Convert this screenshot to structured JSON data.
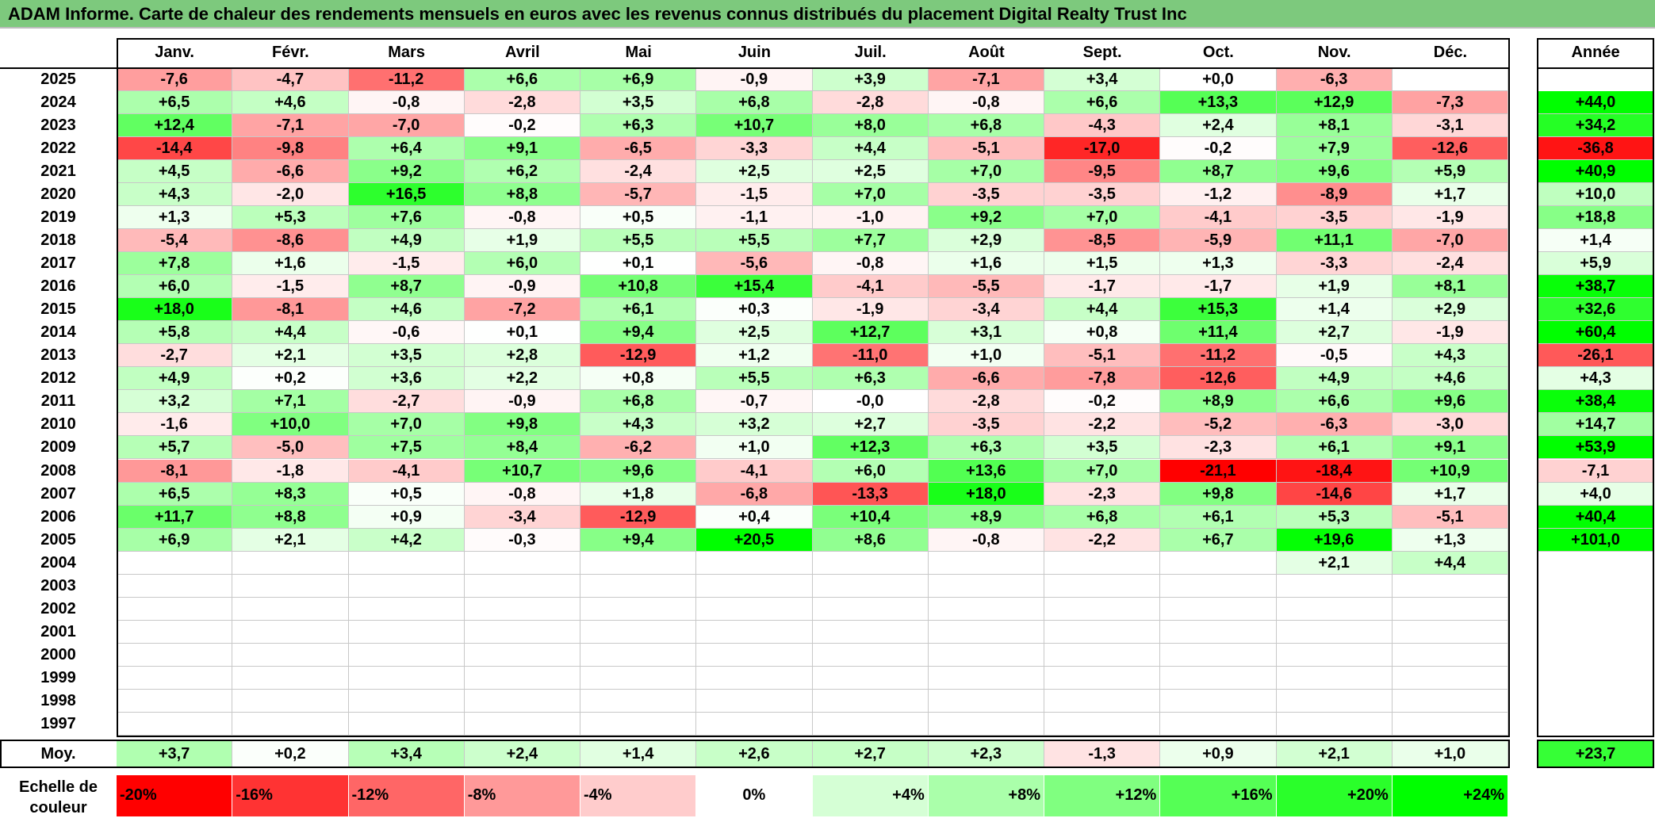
{
  "title": "ADAM Informe. Carte de chaleur des rendements mensuels en euros avec les revenus connus distribués du placement Digital Realty Trust Inc",
  "chart_data": {
    "type": "heatmap",
    "title": "ADAM Informe. Carte de chaleur des rendements mensuels en euros avec les revenus connus distribués du placement Digital Realty Trust Inc",
    "columns": [
      "Janv.",
      "Févr.",
      "Mars",
      "Avril",
      "Mai",
      "Juin",
      "Juil.",
      "Août",
      "Sept.",
      "Oct.",
      "Nov.",
      "Déc."
    ],
    "year_header": "Année",
    "rows": [
      {
        "year": "2025",
        "m": [
          "-7,6",
          "-4,7",
          "-11,2",
          "+6,6",
          "+6,9",
          "-0,9",
          "+3,9",
          "-7,1",
          "+3,4",
          "+0,0",
          "-6,3",
          ""
        ],
        "y": ""
      },
      {
        "year": "2024",
        "m": [
          "+6,5",
          "+4,6",
          "-0,8",
          "-2,8",
          "+3,5",
          "+6,8",
          "-2,8",
          "-0,8",
          "+6,6",
          "+13,3",
          "+12,9",
          "-7,3"
        ],
        "y": "+44,0"
      },
      {
        "year": "2023",
        "m": [
          "+12,4",
          "-7,1",
          "-7,0",
          "-0,2",
          "+6,3",
          "+10,7",
          "+8,0",
          "+6,8",
          "-4,3",
          "+2,4",
          "+8,1",
          "-3,1"
        ],
        "y": "+34,2"
      },
      {
        "year": "2022",
        "m": [
          "-14,4",
          "-9,8",
          "+6,4",
          "+9,1",
          "-6,5",
          "-3,3",
          "+4,4",
          "-5,1",
          "-17,0",
          "-0,2",
          "+7,9",
          "-12,6"
        ],
        "y": "-36,8"
      },
      {
        "year": "2021",
        "m": [
          "+4,5",
          "-6,6",
          "+9,2",
          "+6,2",
          "-2,4",
          "+2,5",
          "+2,5",
          "+7,0",
          "-9,5",
          "+8,7",
          "+9,6",
          "+5,9"
        ],
        "y": "+40,9"
      },
      {
        "year": "2020",
        "m": [
          "+4,3",
          "-2,0",
          "+16,5",
          "+8,8",
          "-5,7",
          "-1,5",
          "+7,0",
          "-3,5",
          "-3,5",
          "-1,2",
          "-8,9",
          "+1,7"
        ],
        "y": "+10,0"
      },
      {
        "year": "2019",
        "m": [
          "+1,3",
          "+5,3",
          "+7,6",
          "-0,8",
          "+0,5",
          "-1,1",
          "-1,0",
          "+9,2",
          "+7,0",
          "-4,1",
          "-3,5",
          "-1,9"
        ],
        "y": "+18,8"
      },
      {
        "year": "2018",
        "m": [
          "-5,4",
          "-8,6",
          "+4,9",
          "+1,9",
          "+5,5",
          "+5,5",
          "+7,7",
          "+2,9",
          "-8,5",
          "-5,9",
          "+11,1",
          "-7,0"
        ],
        "y": "+1,4"
      },
      {
        "year": "2017",
        "m": [
          "+7,8",
          "+1,6",
          "-1,5",
          "+6,0",
          "+0,1",
          "-5,6",
          "-0,8",
          "+1,6",
          "+1,5",
          "+1,3",
          "-3,3",
          "-2,4"
        ],
        "y": "+5,9"
      },
      {
        "year": "2016",
        "m": [
          "+6,0",
          "-1,5",
          "+8,7",
          "-0,9",
          "+10,8",
          "+15,4",
          "-4,1",
          "-5,5",
          "-1,7",
          "-1,7",
          "+1,9",
          "+8,1"
        ],
        "y": "+38,7"
      },
      {
        "year": "2015",
        "m": [
          "+18,0",
          "-8,1",
          "+4,6",
          "-7,2",
          "+6,1",
          "+0,3",
          "-1,9",
          "-3,4",
          "+4,4",
          "+15,3",
          "+1,4",
          "+2,9"
        ],
        "y": "+32,6"
      },
      {
        "year": "2014",
        "m": [
          "+5,8",
          "+4,4",
          "-0,6",
          "+0,1",
          "+9,4",
          "+2,5",
          "+12,7",
          "+3,1",
          "+0,8",
          "+11,4",
          "+2,7",
          "-1,9"
        ],
        "y": "+60,4"
      },
      {
        "year": "2013",
        "m": [
          "-2,7",
          "+2,1",
          "+3,5",
          "+2,8",
          "-12,9",
          "+1,2",
          "-11,0",
          "+1,0",
          "-5,1",
          "-11,2",
          "-0,5",
          "+4,3"
        ],
        "y": "-26,1"
      },
      {
        "year": "2012",
        "m": [
          "+4,9",
          "+0,2",
          "+3,6",
          "+2,2",
          "+0,8",
          "+5,5",
          "+6,3",
          "-6,6",
          "-7,8",
          "-12,6",
          "+4,9",
          "+4,6"
        ],
        "y": "+4,3"
      },
      {
        "year": "2011",
        "m": [
          "+3,2",
          "+7,1",
          "-2,7",
          "-0,9",
          "+6,8",
          "-0,7",
          "-0,0",
          "-2,8",
          "-0,2",
          "+8,9",
          "+6,6",
          "+9,6"
        ],
        "y": "+38,4"
      },
      {
        "year": "2010",
        "m": [
          "-1,6",
          "+10,0",
          "+7,0",
          "+9,8",
          "+4,3",
          "+3,2",
          "+2,7",
          "-3,5",
          "-2,2",
          "-5,2",
          "-6,3",
          "-3,0"
        ],
        "y": "+14,7"
      },
      {
        "year": "2009",
        "m": [
          "+5,7",
          "-5,0",
          "+7,5",
          "+8,4",
          "-6,2",
          "+1,0",
          "+12,3",
          "+6,3",
          "+3,5",
          "-2,3",
          "+6,1",
          "+9,1"
        ],
        "y": "+53,9"
      },
      {
        "year": "2008",
        "m": [
          "-8,1",
          "-1,8",
          "-4,1",
          "+10,7",
          "+9,6",
          "-4,1",
          "+6,0",
          "+13,6",
          "+7,0",
          "-21,1",
          "-18,4",
          "+10,9"
        ],
        "y": "-7,1"
      },
      {
        "year": "2007",
        "m": [
          "+6,5",
          "+8,3",
          "+0,5",
          "-0,8",
          "+1,8",
          "-6,8",
          "-13,3",
          "+18,0",
          "-2,3",
          "+9,8",
          "-14,6",
          "+1,7"
        ],
        "y": "+4,0"
      },
      {
        "year": "2006",
        "m": [
          "+11,7",
          "+8,8",
          "+0,9",
          "-3,4",
          "-12,9",
          "+0,4",
          "+10,4",
          "+8,9",
          "+6,8",
          "+6,1",
          "+5,3",
          "-5,1"
        ],
        "y": "+40,4"
      },
      {
        "year": "2005",
        "m": [
          "+6,9",
          "+2,1",
          "+4,2",
          "-0,3",
          "+9,4",
          "+20,5",
          "+8,6",
          "-0,8",
          "-2,2",
          "+6,7",
          "+19,6",
          "+1,3"
        ],
        "y": "+101,0"
      },
      {
        "year": "2004",
        "m": [
          "",
          "",
          "",
          "",
          "",
          "",
          "",
          "",
          "",
          "",
          "+2,1",
          "+4,4"
        ],
        "y": ""
      },
      {
        "year": "2003",
        "m": [
          "",
          "",
          "",
          "",
          "",
          "",
          "",
          "",
          "",
          "",
          "",
          ""
        ],
        "y": ""
      },
      {
        "year": "2002",
        "m": [
          "",
          "",
          "",
          "",
          "",
          "",
          "",
          "",
          "",
          "",
          "",
          ""
        ],
        "y": ""
      },
      {
        "year": "2001",
        "m": [
          "",
          "",
          "",
          "",
          "",
          "",
          "",
          "",
          "",
          "",
          "",
          ""
        ],
        "y": ""
      },
      {
        "year": "2000",
        "m": [
          "",
          "",
          "",
          "",
          "",
          "",
          "",
          "",
          "",
          "",
          "",
          ""
        ],
        "y": ""
      },
      {
        "year": "1999",
        "m": [
          "",
          "",
          "",
          "",
          "",
          "",
          "",
          "",
          "",
          "",
          "",
          ""
        ],
        "y": ""
      },
      {
        "year": "1998",
        "m": [
          "",
          "",
          "",
          "",
          "",
          "",
          "",
          "",
          "",
          "",
          "",
          ""
        ],
        "y": ""
      },
      {
        "year": "1997",
        "m": [
          "",
          "",
          "",
          "",
          "",
          "",
          "",
          "",
          "",
          "",
          "",
          ""
        ],
        "y": ""
      }
    ],
    "average": {
      "label": "Moy.",
      "m": [
        "+3,7",
        "+0,2",
        "+3,4",
        "+2,4",
        "+1,4",
        "+2,6",
        "+2,7",
        "+2,3",
        "-1,3",
        "+0,9",
        "+2,1",
        "+1,0"
      ],
      "y": "+23,7"
    },
    "legend": {
      "label": "Echelle de couleur",
      "stops": [
        "-20%",
        "-16%",
        "-12%",
        "-8%",
        "-4%",
        "0%",
        "+4%",
        "+8%",
        "+12%",
        "+16%",
        "+20%",
        "+24%"
      ]
    },
    "colors": {
      "negative_max": "#ff0000",
      "zero": "#ffffff",
      "positive_max": "#00ff00",
      "title_bg": "#7dc97d"
    }
  }
}
